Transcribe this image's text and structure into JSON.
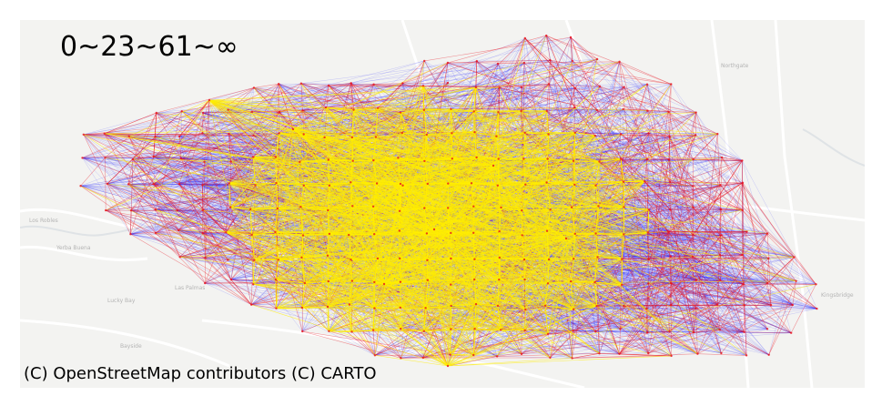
{
  "legend_label": "0~23~61~∞",
  "attribution": "(C) OpenStreetMap contributors (C) CARTO",
  "colors": {
    "basemap": "#f3f3f1",
    "road": "#ffffff",
    "water": "#dfe3e6",
    "label_text": "#b4b4b4",
    "low_range": "#1a1aff",
    "mid_range": "#e8121e",
    "high_range": "#ffee00"
  },
  "basemap_place_labels": [
    "Los Robles",
    "Yerba Buena",
    "Lucky Bay",
    "Las Palmas",
    "Bayside",
    "Northgate",
    "Kingsbridge"
  ]
}
